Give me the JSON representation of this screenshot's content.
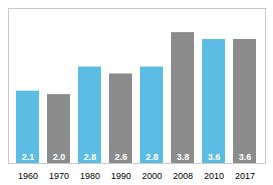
{
  "chart_data": {
    "type": "bar",
    "categories": [
      "1960",
      "1970",
      "1980",
      "1990",
      "2000",
      "2008",
      "2010",
      "2017"
    ],
    "values": [
      2.1,
      2.0,
      2.8,
      2.6,
      2.8,
      3.8,
      3.6,
      3.6
    ],
    "value_labels": [
      "2.1",
      "2.0",
      "2.8",
      "2.6",
      "2.8",
      "3.8",
      "3.6",
      "3.6"
    ],
    "colors": [
      "#5bbde4",
      "#8c8c8c",
      "#5bbde4",
      "#8c8c8c",
      "#5bbde4",
      "#8c8c8c",
      "#5bbde4",
      "#8c8c8c"
    ],
    "ylim": [
      0,
      4.5
    ],
    "data_labels": true,
    "tick_labels": "x",
    "grid": false
  }
}
